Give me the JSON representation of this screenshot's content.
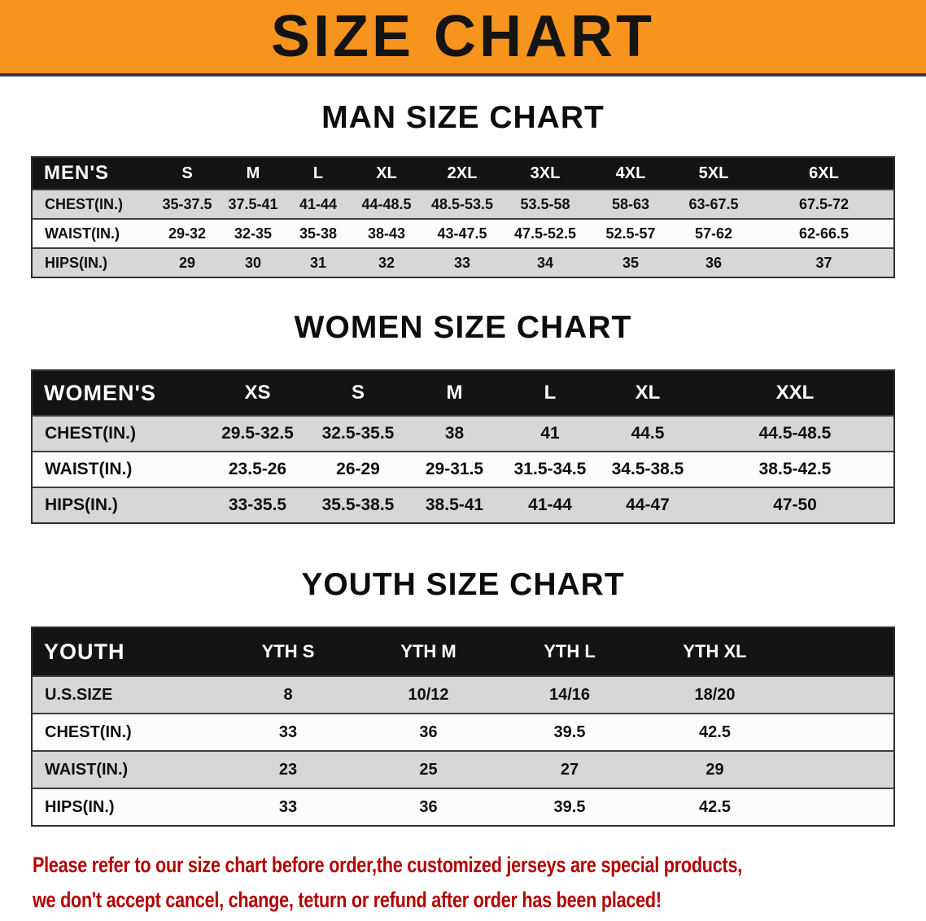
{
  "banner": {
    "title": "SIZE CHART"
  },
  "sections": [
    {
      "heading": "MAN SIZE CHART",
      "table": {
        "header": {
          "label": "MEN'S",
          "columns": [
            "S",
            "M",
            "L",
            "XL",
            "2XL",
            "3XL",
            "4XL",
            "5XL",
            "6XL"
          ]
        },
        "rows": [
          {
            "label": "CHEST(IN.)",
            "values": [
              "35-37.5",
              "37.5-41",
              "41-44",
              "44-48.5",
              "48.5-53.5",
              "53.5-58",
              "58-63",
              "63-67.5",
              "67.5-72"
            ]
          },
          {
            "label": "WAIST(IN.)",
            "values": [
              "29-32",
              "32-35",
              "35-38",
              "38-43",
              "43-47.5",
              "47.5-52.5",
              "52.5-57",
              "57-62",
              "62-66.5"
            ]
          },
          {
            "label": "HIPS(IN.)",
            "values": [
              "29",
              "30",
              "31",
              "32",
              "33",
              "34",
              "35",
              "36",
              "37"
            ]
          }
        ]
      }
    },
    {
      "heading": "WOMEN SIZE CHART",
      "table": {
        "header": {
          "label": "WOMEN'S",
          "columns": [
            "XS",
            "S",
            "M",
            "L",
            "XL",
            "XXL"
          ]
        },
        "rows": [
          {
            "label": "CHEST(IN.)",
            "values": [
              "29.5-32.5",
              "32.5-35.5",
              "38",
              "41",
              "44.5",
              "44.5-48.5"
            ]
          },
          {
            "label": "WAIST(IN.)",
            "values": [
              "23.5-26",
              "26-29",
              "29-31.5",
              "31.5-34.5",
              "34.5-38.5",
              "38.5-42.5"
            ]
          },
          {
            "label": "HIPS(IN.)",
            "values": [
              "33-35.5",
              "35.5-38.5",
              "38.5-41",
              "41-44",
              "44-47",
              "47-50"
            ]
          }
        ]
      }
    },
    {
      "heading": "YOUTH SIZE CHART",
      "table": {
        "header": {
          "label": "YOUTH",
          "columns": [
            "YTH S",
            "YTH M",
            "YTH L",
            "YTH XL"
          ]
        },
        "rows": [
          {
            "label": "U.S.SIZE",
            "values": [
              "8",
              "10/12",
              "14/16",
              "18/20"
            ]
          },
          {
            "label": "CHEST(IN.)",
            "values": [
              "33",
              "36",
              "39.5",
              "42.5"
            ]
          },
          {
            "label": "WAIST(IN.)",
            "values": [
              "23",
              "25",
              "27",
              "29"
            ]
          },
          {
            "label": "HIPS(IN.)",
            "values": [
              "33",
              "36",
              "39.5",
              "42.5"
            ]
          }
        ]
      }
    }
  ],
  "footer": {
    "line1": "Please refer to our size chart before order,the customized jerseys are special products,",
    "line2": "we don't accept cancel, change, teturn or refund after order has been placed!"
  },
  "colors": {
    "banner_bg": "#f7941e",
    "table_header_bg": "#141414",
    "row_shade": "#d7d7d7",
    "warning_text": "#b20000"
  }
}
